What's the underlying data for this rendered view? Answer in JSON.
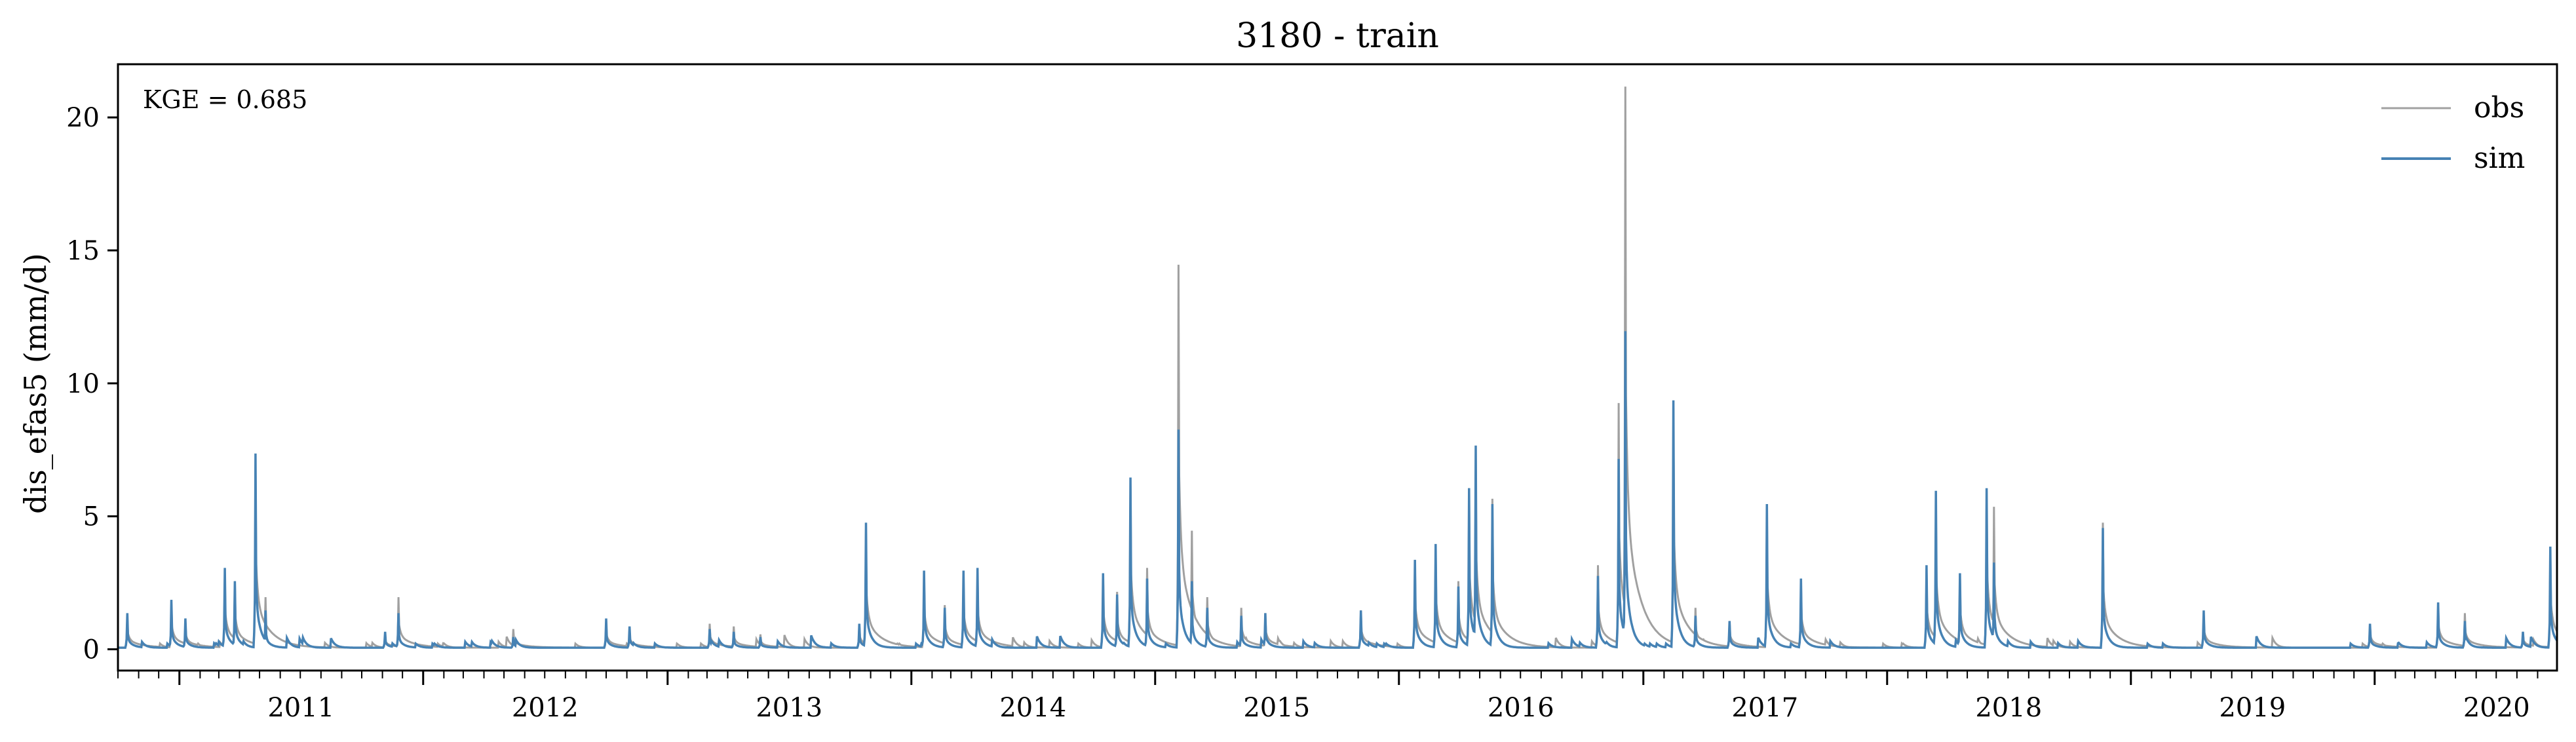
{
  "chart_data": {
    "type": "line",
    "title": "3180 - train",
    "xlabel": "",
    "ylabel": "dis_efas5 (mm/d)",
    "xlim": [
      "2010-10-01",
      "2020-09-30"
    ],
    "ylim": [
      -0.8,
      22
    ],
    "x_ticks": [
      "2011",
      "2012",
      "2013",
      "2014",
      "2015",
      "2016",
      "2017",
      "2018",
      "2019",
      "2020"
    ],
    "y_ticks": [
      0,
      5,
      10,
      15,
      20
    ],
    "grid": false,
    "legend_position": "top-right",
    "annotation": "KGE = 0.685",
    "baseline": 0.06,
    "colors": {
      "obs": "#a0a0a0",
      "sim": "#4682b4"
    },
    "series": [
      {
        "name": "obs",
        "peaks": [
          [
            "2010-10-15",
            1.2
          ],
          [
            "2010-12-20",
            1.7
          ],
          [
            "2011-01-10",
            1.0
          ],
          [
            "2011-03-10",
            2.8
          ],
          [
            "2011-03-25",
            2.5
          ],
          [
            "2011-04-25",
            7.0
          ],
          [
            "2011-05-10",
            1.9
          ],
          [
            "2011-11-05",
            0.5
          ],
          [
            "2011-11-25",
            1.9
          ],
          [
            "2012-05-15",
            0.7
          ],
          [
            "2012-10-01",
            1.0
          ],
          [
            "2012-11-05",
            0.7
          ],
          [
            "2013-03-05",
            0.9
          ],
          [
            "2013-04-10",
            0.8
          ],
          [
            "2013-05-20",
            0.5
          ],
          [
            "2013-10-15",
            0.9
          ],
          [
            "2013-10-25",
            4.4
          ],
          [
            "2014-01-20",
            2.7
          ],
          [
            "2014-02-20",
            1.6
          ],
          [
            "2014-03-20",
            2.6
          ],
          [
            "2014-04-10",
            2.8
          ],
          [
            "2014-10-15",
            2.7
          ],
          [
            "2014-11-05",
            2.1
          ],
          [
            "2014-11-25",
            6.1
          ],
          [
            "2014-12-20",
            3.0
          ],
          [
            "2015-02-05",
            14.4
          ],
          [
            "2015-02-25",
            4.4
          ],
          [
            "2015-03-20",
            1.9
          ],
          [
            "2015-05-10",
            1.5
          ],
          [
            "2015-06-15",
            1.3
          ],
          [
            "2015-11-05",
            1.4
          ],
          [
            "2016-01-25",
            3.3
          ],
          [
            "2016-02-25",
            3.8
          ],
          [
            "2016-03-30",
            2.5
          ],
          [
            "2016-04-15",
            6.0
          ],
          [
            "2016-04-25",
            7.3
          ],
          [
            "2016-05-20",
            5.6
          ],
          [
            "2016-10-25",
            3.1
          ],
          [
            "2016-11-25",
            9.2
          ],
          [
            "2016-12-05",
            21.1
          ],
          [
            "2017-02-15",
            9.0
          ],
          [
            "2017-03-20",
            1.5
          ],
          [
            "2017-05-10",
            1.0
          ],
          [
            "2017-07-05",
            5.2
          ],
          [
            "2017-08-25",
            2.5
          ],
          [
            "2018-03-01",
            3.0
          ],
          [
            "2018-03-15",
            5.5
          ],
          [
            "2018-04-20",
            2.8
          ],
          [
            "2018-05-30",
            5.9
          ],
          [
            "2018-06-10",
            5.3
          ],
          [
            "2018-11-20",
            4.7
          ],
          [
            "2019-04-20",
            1.3
          ],
          [
            "2019-12-25",
            0.9
          ],
          [
            "2020-04-05",
            1.7
          ],
          [
            "2020-05-15",
            1.3
          ],
          [
            "2020-08-10",
            0.6
          ],
          [
            "2020-09-20",
            3.7
          ]
        ]
      },
      {
        "name": "sim",
        "peaks": [
          [
            "2010-10-15",
            1.3
          ],
          [
            "2010-12-20",
            1.8
          ],
          [
            "2011-01-10",
            1.1
          ],
          [
            "2011-03-10",
            3.0
          ],
          [
            "2011-03-25",
            2.5
          ],
          [
            "2011-04-25",
            7.3
          ],
          [
            "2011-05-10",
            1.4
          ],
          [
            "2011-11-05",
            0.6
          ],
          [
            "2011-11-25",
            1.3
          ],
          [
            "2012-05-15",
            0.4
          ],
          [
            "2012-10-01",
            1.1
          ],
          [
            "2012-11-05",
            0.8
          ],
          [
            "2013-03-05",
            0.7
          ],
          [
            "2013-04-10",
            0.6
          ],
          [
            "2013-05-20",
            0.4
          ],
          [
            "2013-10-15",
            0.9
          ],
          [
            "2013-10-25",
            4.7
          ],
          [
            "2014-01-20",
            2.9
          ],
          [
            "2014-02-20",
            1.5
          ],
          [
            "2014-03-20",
            2.9
          ],
          [
            "2014-04-10",
            3.0
          ],
          [
            "2014-10-15",
            2.8
          ],
          [
            "2014-11-05",
            2.0
          ],
          [
            "2014-11-25",
            6.4
          ],
          [
            "2014-12-20",
            2.6
          ],
          [
            "2015-02-05",
            8.2
          ],
          [
            "2015-02-25",
            2.5
          ],
          [
            "2015-03-20",
            1.5
          ],
          [
            "2015-05-10",
            1.2
          ],
          [
            "2015-06-15",
            1.3
          ],
          [
            "2015-11-05",
            1.4
          ],
          [
            "2016-01-25",
            3.3
          ],
          [
            "2016-02-25",
            3.9
          ],
          [
            "2016-03-30",
            2.3
          ],
          [
            "2016-04-15",
            6.0
          ],
          [
            "2016-04-25",
            7.6
          ],
          [
            "2016-05-20",
            5.4
          ],
          [
            "2016-10-25",
            2.7
          ],
          [
            "2016-11-25",
            7.1
          ],
          [
            "2016-12-05",
            11.9
          ],
          [
            "2017-02-15",
            9.3
          ],
          [
            "2017-03-20",
            1.2
          ],
          [
            "2017-05-10",
            1.0
          ],
          [
            "2017-07-05",
            5.4
          ],
          [
            "2017-08-25",
            2.6
          ],
          [
            "2018-03-01",
            3.1
          ],
          [
            "2018-03-15",
            5.9
          ],
          [
            "2018-04-20",
            2.8
          ],
          [
            "2018-05-30",
            6.0
          ],
          [
            "2018-06-10",
            3.2
          ],
          [
            "2018-11-20",
            4.5
          ],
          [
            "2019-04-20",
            1.4
          ],
          [
            "2019-12-25",
            0.9
          ],
          [
            "2020-04-05",
            1.7
          ],
          [
            "2020-05-15",
            1.0
          ],
          [
            "2020-08-10",
            0.6
          ],
          [
            "2020-09-20",
            3.8
          ]
        ]
      }
    ]
  }
}
